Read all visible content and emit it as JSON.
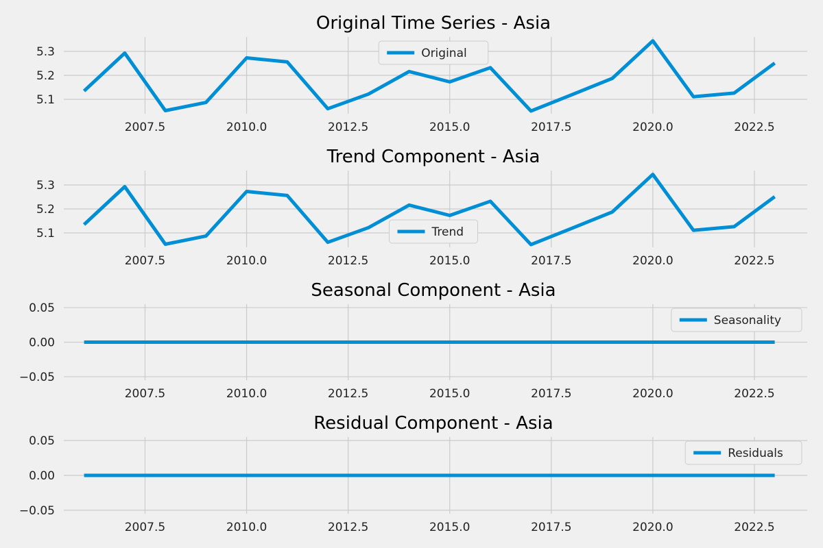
{
  "chart_data": [
    {
      "type": "line",
      "title": "Original Time Series - Asia",
      "xlim": [
        2005.5,
        2023.8
      ],
      "ylim": [
        5.04,
        5.36
      ],
      "xticks": [
        2007.5,
        2010.0,
        2012.5,
        2015.0,
        2017.5,
        2020.0,
        2022.5
      ],
      "xtick_labels": [
        "2007.5",
        "2010.0",
        "2012.5",
        "2015.0",
        "2017.5",
        "2020.0",
        "2022.5"
      ],
      "yticks": [
        5.1,
        5.2,
        5.3
      ],
      "ytick_labels": [
        "5.1",
        "5.2",
        "5.3"
      ],
      "grid": true,
      "legend": "upper center",
      "series": [
        {
          "name": "Original",
          "color": "#008fd5",
          "x": [
            2006,
            2007,
            2008,
            2009,
            2010,
            2011,
            2012,
            2013,
            2014,
            2015,
            2016,
            2017,
            2018,
            2019,
            2020,
            2021,
            2022,
            2023
          ],
          "y": [
            5.135,
            5.293,
            5.053,
            5.087,
            5.273,
            5.256,
            5.061,
            5.122,
            5.216,
            5.173,
            5.232,
            5.051,
            5.119,
            5.187,
            5.344,
            5.111,
            5.126,
            5.251
          ]
        }
      ]
    },
    {
      "type": "line",
      "title": "Trend Component - Asia",
      "xlim": [
        2005.5,
        2023.8
      ],
      "ylim": [
        5.04,
        5.36
      ],
      "xticks": [
        2007.5,
        2010.0,
        2012.5,
        2015.0,
        2017.5,
        2020.0,
        2022.5
      ],
      "xtick_labels": [
        "2007.5",
        "2010.0",
        "2012.5",
        "2015.0",
        "2017.5",
        "2020.0",
        "2022.5"
      ],
      "yticks": [
        5.1,
        5.2,
        5.3
      ],
      "ytick_labels": [
        "5.1",
        "5.2",
        "5.3"
      ],
      "grid": true,
      "legend": "lower center",
      "series": [
        {
          "name": "Trend",
          "color": "#008fd5",
          "x": [
            2006,
            2007,
            2008,
            2009,
            2010,
            2011,
            2012,
            2013,
            2014,
            2015,
            2016,
            2017,
            2018,
            2019,
            2020,
            2021,
            2022,
            2023
          ],
          "y": [
            5.135,
            5.293,
            5.053,
            5.087,
            5.273,
            5.256,
            5.061,
            5.122,
            5.216,
            5.173,
            5.232,
            5.051,
            5.119,
            5.187,
            5.344,
            5.111,
            5.126,
            5.251
          ]
        }
      ]
    },
    {
      "type": "line",
      "title": "Seasonal Component - Asia",
      "xlim": [
        2005.5,
        2023.8
      ],
      "ylim": [
        -0.055,
        0.055
      ],
      "xticks": [
        2007.5,
        2010.0,
        2012.5,
        2015.0,
        2017.5,
        2020.0,
        2022.5
      ],
      "xtick_labels": [
        "2007.5",
        "2010.0",
        "2012.5",
        "2015.0",
        "2017.5",
        "2020.0",
        "2022.5"
      ],
      "yticks": [
        -0.05,
        0.0,
        0.05
      ],
      "ytick_labels": [
        "−0.05",
        "0.00",
        "0.05"
      ],
      "grid": true,
      "legend": "upper right",
      "series": [
        {
          "name": "Seasonality",
          "color": "#008fd5",
          "x": [
            2006,
            2007,
            2008,
            2009,
            2010,
            2011,
            2012,
            2013,
            2014,
            2015,
            2016,
            2017,
            2018,
            2019,
            2020,
            2021,
            2022,
            2023
          ],
          "y": [
            0,
            0,
            0,
            0,
            0,
            0,
            0,
            0,
            0,
            0,
            0,
            0,
            0,
            0,
            0,
            0,
            0,
            0
          ]
        }
      ]
    },
    {
      "type": "line",
      "title": "Residual Component - Asia",
      "xlim": [
        2005.5,
        2023.8
      ],
      "ylim": [
        -0.055,
        0.055
      ],
      "xticks": [
        2007.5,
        2010.0,
        2012.5,
        2015.0,
        2017.5,
        2020.0,
        2022.5
      ],
      "xtick_labels": [
        "2007.5",
        "2010.0",
        "2012.5",
        "2015.0",
        "2017.5",
        "2020.0",
        "2022.5"
      ],
      "yticks": [
        -0.05,
        0.0,
        0.05
      ],
      "ytick_labels": [
        "−0.05",
        "0.00",
        "0.05"
      ],
      "grid": true,
      "legend": "upper right",
      "series": [
        {
          "name": "Residuals",
          "color": "#008fd5",
          "x": [
            2006,
            2007,
            2008,
            2009,
            2010,
            2011,
            2012,
            2013,
            2014,
            2015,
            2016,
            2017,
            2018,
            2019,
            2020,
            2021,
            2022,
            2023
          ],
          "y": [
            0,
            0,
            0,
            0,
            0,
            0,
            0,
            0,
            0,
            0,
            0,
            0,
            0,
            0,
            0,
            0,
            0,
            0
          ]
        }
      ]
    }
  ]
}
